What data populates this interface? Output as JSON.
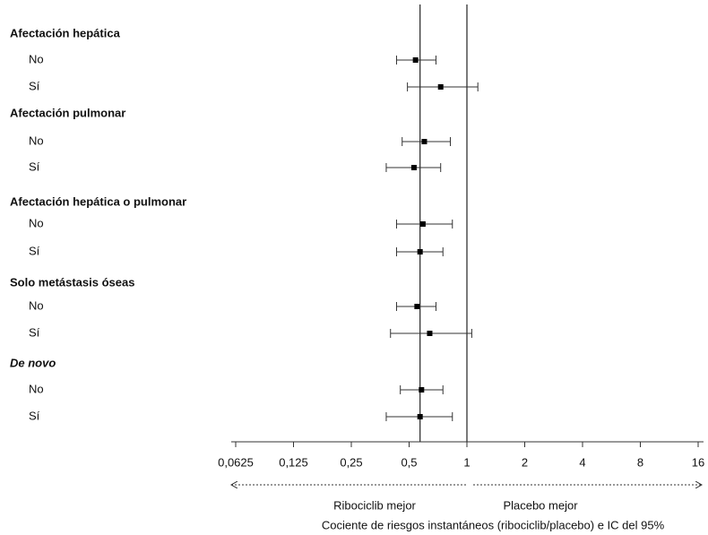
{
  "chart_data": {
    "type": "forest",
    "groups": [
      {
        "label": "Afectación hepática",
        "rows": [
          {
            "label": "No",
            "value": 0.54,
            "ci": [
              0.43,
              0.69
            ]
          },
          {
            "label": "Sí",
            "value": 0.73,
            "ci": [
              0.49,
              1.14
            ]
          }
        ]
      },
      {
        "label": "Afectación pulmonar",
        "rows": [
          {
            "label": "No",
            "value": 0.6,
            "ci": [
              0.46,
              0.82
            ]
          },
          {
            "label": "Sí",
            "value": 0.53,
            "ci": [
              0.38,
              0.73
            ]
          }
        ]
      },
      {
        "label": "Afectación hepática o pulmonar",
        "rows": [
          {
            "label": "No",
            "value": 0.59,
            "ci": [
              0.43,
              0.84
            ]
          },
          {
            "label": "Sí",
            "value": 0.57,
            "ci": [
              0.43,
              0.75
            ]
          }
        ]
      },
      {
        "label": "Solo metástasis óseas",
        "rows": [
          {
            "label": "No",
            "value": 0.55,
            "ci": [
              0.43,
              0.69
            ]
          },
          {
            "label": "Sí",
            "value": 0.64,
            "ci": [
              0.4,
              1.06
            ]
          }
        ]
      },
      {
        "label": "De novo",
        "italic": true,
        "rows": [
          {
            "label": "No",
            "value": 0.58,
            "ci": [
              0.45,
              0.75
            ]
          },
          {
            "label": "Sí",
            "value": 0.57,
            "ci": [
              0.38,
              0.84
            ]
          }
        ]
      }
    ],
    "overall_line": 0.57,
    "null_line": 1,
    "log_scale": true,
    "log_base": 2,
    "xlim": [
      0.0625,
      16
    ],
    "xticks": [
      {
        "value": 0.0625,
        "label": "0,0625"
      },
      {
        "value": 0.125,
        "label": "0,125"
      },
      {
        "value": 0.25,
        "label": "0,25"
      },
      {
        "value": 0.5,
        "label": "0,5"
      },
      1,
      2,
      4,
      8,
      16
    ],
    "left_label": "Ribociclib mejor",
    "right_label": "Placebo mejor",
    "xlabel": "Cociente de riesgos instantáneos (ribociclib/placebo) e IC del 95%"
  }
}
